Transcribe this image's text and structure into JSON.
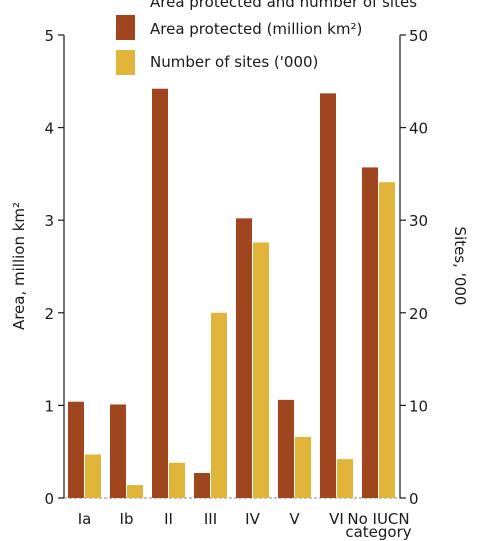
{
  "top_caption": "Area protected and number of sites",
  "chart_data": {
    "type": "bar",
    "categories": [
      "Ia",
      "Ib",
      "II",
      "III",
      "IV",
      "V",
      "VI",
      "No IUCN category"
    ],
    "series": [
      {
        "name": "Area protected (million km²)",
        "axis": "left",
        "color": "#a0461f",
        "values": [
          1.04,
          1.01,
          4.42,
          0.27,
          3.02,
          1.06,
          4.37,
          3.57
        ]
      },
      {
        "name": "Number of sites ('000)",
        "axis": "right",
        "color": "#e0b53a",
        "values": [
          4.7,
          1.4,
          3.8,
          20.0,
          27.6,
          6.6,
          4.2,
          34.1
        ]
      }
    ],
    "ylabel_left": "Area, million km²",
    "ylabel_right": "Sites, '000",
    "ylim_left": [
      0,
      5
    ],
    "ylim_right": [
      0,
      50
    ],
    "yticks_left": [
      "0",
      "1",
      "2",
      "3",
      "4",
      "5"
    ],
    "yticks_right": [
      "0",
      "10",
      "20",
      "30",
      "40",
      "50"
    ],
    "legend_position": "top-center",
    "grid": false
  }
}
